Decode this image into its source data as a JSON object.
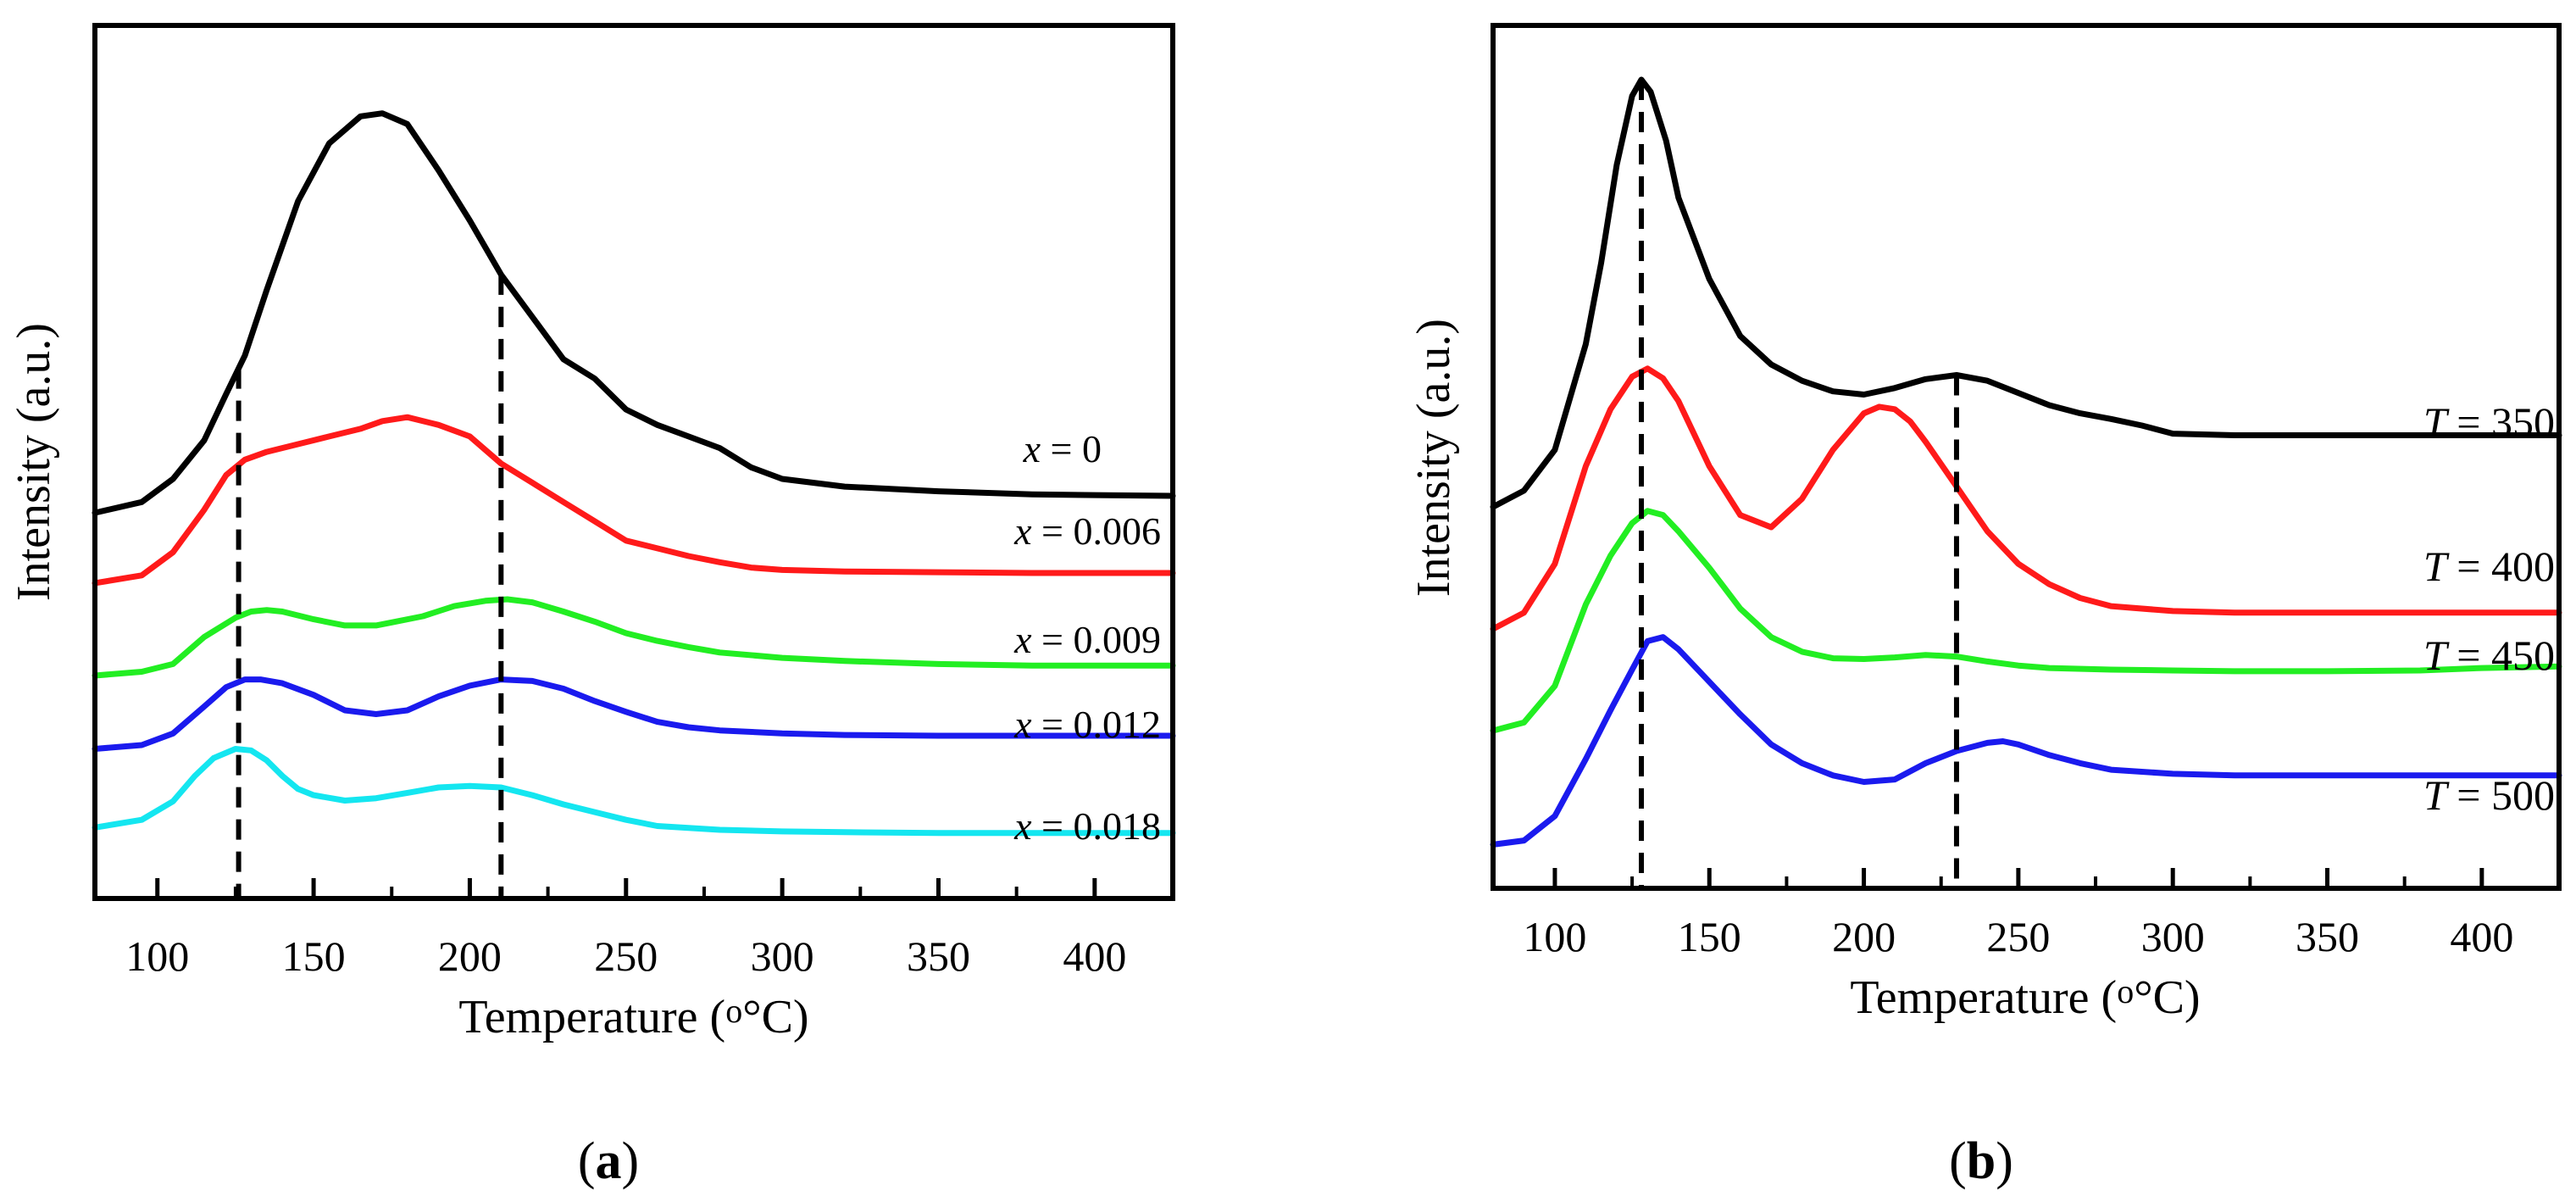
{
  "chart_data": [
    {
      "panel": "(a)",
      "panel_letter": "a",
      "type": "line",
      "xlabel": "Temperature (",
      "xlabel_unit": "°C)",
      "ylabel": "Intensity (a.u.)",
      "xlim": [
        80,
        425
      ],
      "ylim": [
        0,
        1
      ],
      "yticks_labeled": false,
      "xticks": [
        100,
        150,
        200,
        250,
        300,
        350,
        400
      ],
      "reference_lines_x": [
        126,
        210
      ],
      "series": [
        {
          "name": "x = 0",
          "label_var": "x",
          "label_value": "= 0",
          "color": "#000000",
          "x": [
            80,
            95,
            105,
            115,
            122,
            128,
            135,
            145,
            155,
            165,
            172,
            180,
            190,
            200,
            210,
            220,
            230,
            240,
            250,
            260,
            270,
            280,
            290,
            300,
            320,
            350,
            380,
            400,
            425
          ],
          "y": [
            0.456,
            0.47,
            0.5,
            0.55,
            0.61,
            0.66,
            0.745,
            0.86,
            0.935,
            0.97,
            0.974,
            0.96,
            0.9,
            0.835,
            0.765,
            0.71,
            0.655,
            0.63,
            0.59,
            0.57,
            0.555,
            0.54,
            0.515,
            0.5,
            0.49,
            0.484,
            0.48,
            0.479,
            0.478
          ]
        },
        {
          "name": "x = 0.006",
          "label_var": "x",
          "label_value": "= 0.006",
          "color": "#ff1a1a",
          "x": [
            80,
            95,
            105,
            115,
            122,
            128,
            135,
            145,
            155,
            165,
            172,
            180,
            190,
            200,
            210,
            220,
            230,
            240,
            250,
            260,
            270,
            280,
            290,
            300,
            320,
            350,
            380,
            400,
            425
          ],
          "y": [
            0.365,
            0.375,
            0.405,
            0.46,
            0.505,
            0.525,
            0.535,
            0.545,
            0.555,
            0.565,
            0.575,
            0.58,
            0.57,
            0.555,
            0.52,
            0.495,
            0.47,
            0.445,
            0.42,
            0.41,
            0.4,
            0.392,
            0.385,
            0.382,
            0.38,
            0.379,
            0.378,
            0.378,
            0.378
          ]
        },
        {
          "name": "x = 0.009",
          "label_var": "x",
          "label_value": "= 0.009",
          "color": "#22ee22",
          "x": [
            80,
            95,
            105,
            115,
            125,
            130,
            135,
            140,
            150,
            160,
            170,
            175,
            185,
            195,
            205,
            212,
            220,
            230,
            240,
            250,
            260,
            270,
            280,
            300,
            320,
            350,
            380,
            400,
            425
          ],
          "y": [
            0.245,
            0.25,
            0.26,
            0.295,
            0.32,
            0.328,
            0.33,
            0.328,
            0.318,
            0.31,
            0.31,
            0.314,
            0.322,
            0.335,
            0.342,
            0.344,
            0.34,
            0.328,
            0.315,
            0.3,
            0.29,
            0.282,
            0.275,
            0.268,
            0.264,
            0.26,
            0.258,
            0.258,
            0.258
          ]
        },
        {
          "name": "x = 0.012",
          "label_var": "x",
          "label_value": "= 0.012",
          "color": "#1a1aee",
          "x": [
            80,
            95,
            105,
            115,
            122,
            128,
            133,
            140,
            150,
            160,
            170,
            180,
            190,
            200,
            210,
            220,
            230,
            240,
            250,
            260,
            270,
            280,
            300,
            320,
            350,
            380,
            400,
            425
          ],
          "y": [
            0.15,
            0.155,
            0.17,
            0.205,
            0.23,
            0.24,
            0.24,
            0.235,
            0.22,
            0.2,
            0.195,
            0.2,
            0.218,
            0.232,
            0.24,
            0.238,
            0.228,
            0.212,
            0.198,
            0.185,
            0.178,
            0.174,
            0.17,
            0.168,
            0.167,
            0.167,
            0.167,
            0.167
          ]
        },
        {
          "name": "x = 0.018",
          "label_var": "x",
          "label_value": "= 0.018",
          "color": "#14e6f0",
          "x": [
            80,
            95,
            105,
            112,
            118,
            125,
            130,
            135,
            140,
            145,
            150,
            160,
            170,
            180,
            190,
            200,
            210,
            220,
            230,
            240,
            250,
            260,
            280,
            300,
            320,
            350,
            380,
            400,
            425
          ],
          "y": [
            0.048,
            0.058,
            0.082,
            0.115,
            0.138,
            0.15,
            0.148,
            0.135,
            0.115,
            0.098,
            0.09,
            0.083,
            0.086,
            0.093,
            0.1,
            0.102,
            0.1,
            0.09,
            0.078,
            0.068,
            0.058,
            0.05,
            0.045,
            0.043,
            0.042,
            0.041,
            0.041,
            0.041,
            0.041
          ]
        }
      ]
    },
    {
      "panel": "(b)",
      "panel_letter": "b",
      "type": "line",
      "xlabel": "Temperature (",
      "xlabel_unit": "°C)",
      "ylabel": "Intensity (a.u.)",
      "xlim": [
        80,
        425
      ],
      "ylim": [
        0,
        1
      ],
      "yticks_labeled": false,
      "xticks": [
        100,
        150,
        200,
        250,
        300,
        350,
        400
      ],
      "reference_lines_x": [
        128,
        230
      ],
      "series": [
        {
          "name": "T = 350",
          "label_var": "T",
          "label_value": "= 350",
          "color": "#000000",
          "x": [
            80,
            90,
            100,
            110,
            115,
            120,
            125,
            128,
            131,
            136,
            140,
            150,
            160,
            170,
            180,
            190,
            200,
            210,
            220,
            230,
            240,
            250,
            260,
            270,
            280,
            290,
            300,
            320,
            350,
            380,
            400,
            425
          ],
          "y": [
            0.45,
            0.47,
            0.52,
            0.65,
            0.75,
            0.87,
            0.955,
            0.975,
            0.96,
            0.9,
            0.83,
            0.73,
            0.66,
            0.625,
            0.605,
            0.592,
            0.588,
            0.596,
            0.607,
            0.612,
            0.605,
            0.59,
            0.575,
            0.565,
            0.558,
            0.55,
            0.54,
            0.538,
            0.538,
            0.538,
            0.538,
            0.538
          ]
        },
        {
          "name": "T = 400",
          "label_var": "T",
          "label_value": "= 400",
          "color": "#ff1a1a",
          "x": [
            80,
            90,
            100,
            110,
            118,
            125,
            130,
            135,
            140,
            150,
            160,
            170,
            180,
            190,
            200,
            205,
            210,
            215,
            220,
            230,
            240,
            250,
            260,
            270,
            280,
            300,
            320,
            350,
            380,
            400,
            425
          ],
          "y": [
            0.3,
            0.32,
            0.38,
            0.5,
            0.57,
            0.61,
            0.62,
            0.608,
            0.58,
            0.5,
            0.44,
            0.425,
            0.46,
            0.52,
            0.565,
            0.573,
            0.57,
            0.555,
            0.53,
            0.475,
            0.42,
            0.38,
            0.355,
            0.338,
            0.328,
            0.322,
            0.32,
            0.32,
            0.32,
            0.32,
            0.32
          ]
        },
        {
          "name": "T = 450",
          "label_var": "T",
          "label_value": "= 450",
          "color": "#22ee22",
          "x": [
            80,
            90,
            100,
            110,
            118,
            125,
            130,
            135,
            140,
            150,
            160,
            170,
            180,
            190,
            200,
            210,
            220,
            230,
            240,
            250,
            260,
            280,
            300,
            320,
            350,
            380,
            400,
            425
          ],
          "y": [
            0.175,
            0.185,
            0.23,
            0.33,
            0.39,
            0.43,
            0.445,
            0.44,
            0.42,
            0.375,
            0.325,
            0.29,
            0.272,
            0.264,
            0.263,
            0.265,
            0.268,
            0.266,
            0.26,
            0.255,
            0.252,
            0.25,
            0.249,
            0.248,
            0.248,
            0.249,
            0.252,
            0.254
          ]
        },
        {
          "name": "T = 500",
          "label_var": "T",
          "label_value": "= 500",
          "color": "#1a1aee",
          "x": [
            80,
            90,
            100,
            110,
            118,
            125,
            130,
            135,
            140,
            150,
            160,
            170,
            180,
            190,
            200,
            210,
            220,
            230,
            240,
            245,
            250,
            260,
            270,
            280,
            300,
            320,
            350,
            380,
            400,
            425
          ],
          "y": [
            0.035,
            0.04,
            0.07,
            0.14,
            0.2,
            0.25,
            0.285,
            0.29,
            0.275,
            0.235,
            0.195,
            0.158,
            0.135,
            0.12,
            0.112,
            0.115,
            0.135,
            0.15,
            0.16,
            0.162,
            0.158,
            0.145,
            0.135,
            0.127,
            0.122,
            0.12,
            0.12,
            0.12,
            0.12,
            0.12
          ]
        }
      ]
    }
  ]
}
